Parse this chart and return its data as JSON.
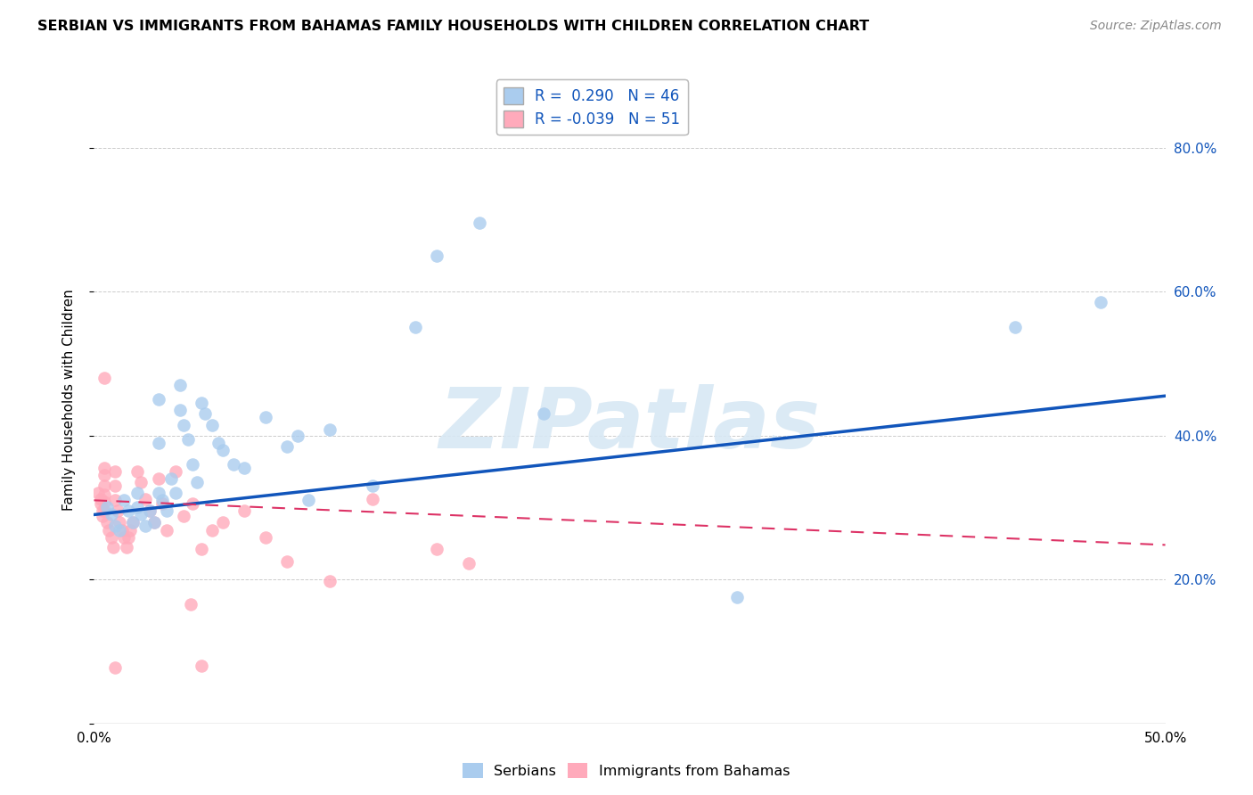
{
  "title": "SERBIAN VS IMMIGRANTS FROM BAHAMAS FAMILY HOUSEHOLDS WITH CHILDREN CORRELATION CHART",
  "source": "Source: ZipAtlas.com",
  "ylabel": "Family Households with Children",
  "xlim": [
    0.0,
    0.5
  ],
  "ylim": [
    0.0,
    0.9
  ],
  "yticks": [
    0.0,
    0.2,
    0.4,
    0.6,
    0.8
  ],
  "xticks": [
    0.0,
    0.1,
    0.2,
    0.3,
    0.4,
    0.5
  ],
  "legend_r_blue": "R =  0.290",
  "legend_n_blue": "N = 46",
  "legend_r_pink": "R = -0.039",
  "legend_n_pink": "N = 51",
  "blue_fill": "#AACCEE",
  "pink_fill": "#FFAABB",
  "blue_line_color": "#1155BB",
  "pink_line_color": "#DD3366",
  "watermark": "ZIPatlas",
  "blue_points_x": [
    0.006,
    0.008,
    0.01,
    0.012,
    0.014,
    0.016,
    0.018,
    0.02,
    0.02,
    0.022,
    0.024,
    0.026,
    0.028,
    0.03,
    0.03,
    0.03,
    0.032,
    0.034,
    0.036,
    0.038,
    0.04,
    0.04,
    0.042,
    0.044,
    0.046,
    0.048,
    0.05,
    0.052,
    0.055,
    0.058,
    0.06,
    0.065,
    0.07,
    0.08,
    0.09,
    0.095,
    0.1,
    0.11,
    0.13,
    0.15,
    0.16,
    0.18,
    0.21,
    0.3,
    0.43,
    0.47
  ],
  "blue_points_y": [
    0.3,
    0.29,
    0.275,
    0.268,
    0.31,
    0.295,
    0.28,
    0.32,
    0.3,
    0.29,
    0.275,
    0.295,
    0.28,
    0.45,
    0.39,
    0.32,
    0.31,
    0.295,
    0.34,
    0.32,
    0.47,
    0.435,
    0.415,
    0.395,
    0.36,
    0.335,
    0.445,
    0.43,
    0.415,
    0.39,
    0.38,
    0.36,
    0.355,
    0.425,
    0.385,
    0.4,
    0.31,
    0.408,
    0.33,
    0.55,
    0.65,
    0.695,
    0.43,
    0.175,
    0.55,
    0.585
  ],
  "pink_points_x": [
    0.002,
    0.003,
    0.003,
    0.004,
    0.004,
    0.005,
    0.005,
    0.005,
    0.005,
    0.005,
    0.005,
    0.005,
    0.006,
    0.007,
    0.008,
    0.009,
    0.01,
    0.01,
    0.01,
    0.011,
    0.012,
    0.013,
    0.014,
    0.015,
    0.016,
    0.017,
    0.018,
    0.02,
    0.022,
    0.024,
    0.026,
    0.028,
    0.03,
    0.032,
    0.034,
    0.038,
    0.042,
    0.046,
    0.05,
    0.055,
    0.06,
    0.07,
    0.08,
    0.09,
    0.11,
    0.13,
    0.16,
    0.175,
    0.05,
    0.045,
    0.01
  ],
  "pink_points_y": [
    0.32,
    0.312,
    0.305,
    0.296,
    0.288,
    0.48,
    0.355,
    0.345,
    0.33,
    0.318,
    0.308,
    0.295,
    0.28,
    0.268,
    0.258,
    0.245,
    0.35,
    0.33,
    0.31,
    0.295,
    0.28,
    0.268,
    0.258,
    0.245,
    0.258,
    0.268,
    0.28,
    0.35,
    0.335,
    0.312,
    0.295,
    0.28,
    0.34,
    0.305,
    0.268,
    0.35,
    0.288,
    0.305,
    0.242,
    0.268,
    0.28,
    0.295,
    0.258,
    0.225,
    0.198,
    0.312,
    0.242,
    0.222,
    0.08,
    0.165,
    0.078
  ],
  "blue_trend_x": [
    0.0,
    0.5
  ],
  "blue_trend_y": [
    0.29,
    0.455
  ],
  "pink_trend_x": [
    0.0,
    0.5
  ],
  "pink_trend_y": [
    0.31,
    0.248
  ],
  "background_color": "#FFFFFF",
  "grid_color": "#CCCCCC"
}
